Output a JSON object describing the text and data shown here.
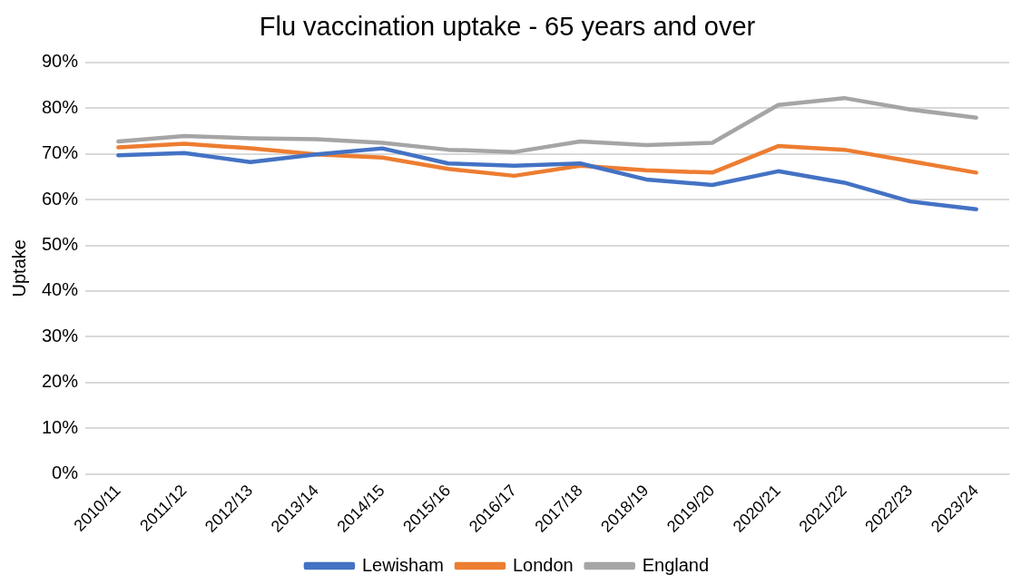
{
  "chart_data": {
    "type": "line",
    "title": "Flu vaccination uptake - 65 years and over",
    "ylabel": "Uptake",
    "categories": [
      "2010/11",
      "2011/12",
      "2012/13",
      "2013/14",
      "2014/15",
      "2015/16",
      "2016/17",
      "2017/18",
      "2018/19",
      "2019/20",
      "2020/21",
      "2021/22",
      "2022/23",
      "2023/24"
    ],
    "series": [
      {
        "name": "Lewisham",
        "color": "#4472c4",
        "values": [
          69.7,
          70.2,
          68.2,
          69.9,
          71.2,
          67.9,
          67.4,
          67.9,
          64.4,
          63.2,
          66.2,
          63.7,
          59.6,
          57.9
        ]
      },
      {
        "name": "London",
        "color": "#ed7d31",
        "values": [
          71.4,
          72.2,
          71.2,
          69.9,
          69.2,
          66.7,
          65.2,
          67.4,
          66.4,
          65.9,
          71.7,
          70.9,
          68.4,
          65.9
        ]
      },
      {
        "name": "England",
        "color": "#a5a5a5",
        "values": [
          72.7,
          73.9,
          73.4,
          73.2,
          72.4,
          70.9,
          70.4,
          72.7,
          71.9,
          72.4,
          80.7,
          82.2,
          79.7,
          77.9
        ]
      }
    ],
    "ylim": [
      0,
      90
    ],
    "yticks": [
      {
        "value": 0,
        "label": "0%"
      },
      {
        "value": 10,
        "label": "10%"
      },
      {
        "value": 20,
        "label": "20%"
      },
      {
        "value": 30,
        "label": "30%"
      },
      {
        "value": 40,
        "label": "40%"
      },
      {
        "value": 50,
        "label": "50%"
      },
      {
        "value": 60,
        "label": "60%"
      },
      {
        "value": 70,
        "label": "70%"
      },
      {
        "value": 80,
        "label": "80%"
      },
      {
        "value": 90,
        "label": "90%"
      }
    ],
    "grid": "y",
    "legend": "bottom",
    "marker": "none",
    "line_style": "solid"
  }
}
